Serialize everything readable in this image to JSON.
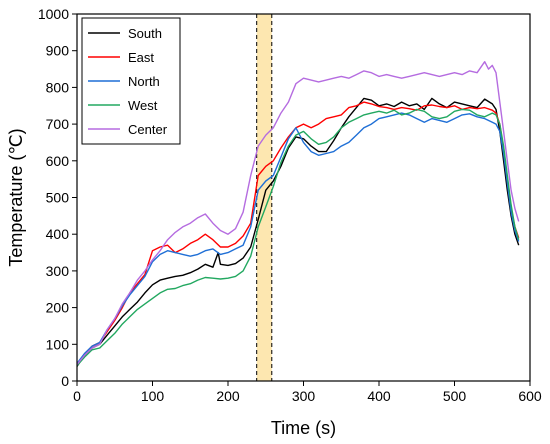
{
  "chart_data": {
    "type": "line",
    "title": "",
    "xlabel": "Time (s)",
    "ylabel": "Temperature (℃)",
    "xlim": [
      0,
      600
    ],
    "ylim": [
      0,
      1000
    ],
    "xticks": [
      "0",
      "100",
      "200",
      "300",
      "400",
      "500",
      "600"
    ],
    "yticks": [
      "0",
      "100",
      "200",
      "300",
      "400",
      "500",
      "600",
      "700",
      "800",
      "900",
      "1000"
    ],
    "grid": false,
    "legend_position": "top-left",
    "highlight_band": {
      "x_start": 238,
      "x_end": 258,
      "color": "#fde7b0"
    },
    "series": [
      {
        "name": "South",
        "color": "#000000",
        "points": [
          [
            0,
            40
          ],
          [
            10,
            70
          ],
          [
            20,
            90
          ],
          [
            30,
            100
          ],
          [
            40,
            125
          ],
          [
            50,
            150
          ],
          [
            60,
            175
          ],
          [
            70,
            195
          ],
          [
            80,
            215
          ],
          [
            90,
            240
          ],
          [
            100,
            262
          ],
          [
            110,
            275
          ],
          [
            120,
            280
          ],
          [
            130,
            285
          ],
          [
            140,
            288
          ],
          [
            150,
            295
          ],
          [
            160,
            305
          ],
          [
            170,
            318
          ],
          [
            180,
            310
          ],
          [
            187,
            350
          ],
          [
            190,
            318
          ],
          [
            200,
            315
          ],
          [
            210,
            320
          ],
          [
            220,
            335
          ],
          [
            230,
            365
          ],
          [
            240,
            440
          ],
          [
            250,
            520
          ],
          [
            260,
            545
          ],
          [
            270,
            585
          ],
          [
            280,
            635
          ],
          [
            290,
            665
          ],
          [
            300,
            660
          ],
          [
            310,
            640
          ],
          [
            320,
            625
          ],
          [
            330,
            625
          ],
          [
            340,
            655
          ],
          [
            350,
            690
          ],
          [
            360,
            720
          ],
          [
            370,
            745
          ],
          [
            380,
            770
          ],
          [
            390,
            765
          ],
          [
            400,
            750
          ],
          [
            410,
            755
          ],
          [
            420,
            748
          ],
          [
            430,
            760
          ],
          [
            440,
            750
          ],
          [
            450,
            755
          ],
          [
            460,
            740
          ],
          [
            470,
            770
          ],
          [
            480,
            755
          ],
          [
            490,
            745
          ],
          [
            500,
            760
          ],
          [
            510,
            755
          ],
          [
            520,
            750
          ],
          [
            530,
            745
          ],
          [
            540,
            768
          ],
          [
            550,
            755
          ],
          [
            555,
            740
          ],
          [
            560,
            680
          ],
          [
            565,
            600
          ],
          [
            570,
            520
          ],
          [
            575,
            450
          ],
          [
            580,
            400
          ],
          [
            585,
            370
          ]
        ]
      },
      {
        "name": "East",
        "color": "#ff0000",
        "points": [
          [
            0,
            45
          ],
          [
            10,
            72
          ],
          [
            20,
            95
          ],
          [
            30,
            105
          ],
          [
            40,
            135
          ],
          [
            50,
            165
          ],
          [
            60,
            200
          ],
          [
            70,
            240
          ],
          [
            80,
            265
          ],
          [
            90,
            290
          ],
          [
            100,
            355
          ],
          [
            110,
            365
          ],
          [
            120,
            370
          ],
          [
            130,
            350
          ],
          [
            140,
            360
          ],
          [
            150,
            375
          ],
          [
            160,
            385
          ],
          [
            170,
            400
          ],
          [
            180,
            385
          ],
          [
            190,
            365
          ],
          [
            200,
            365
          ],
          [
            210,
            375
          ],
          [
            220,
            395
          ],
          [
            230,
            430
          ],
          [
            240,
            560
          ],
          [
            250,
            585
          ],
          [
            260,
            600
          ],
          [
            270,
            635
          ],
          [
            280,
            665
          ],
          [
            290,
            690
          ],
          [
            300,
            700
          ],
          [
            310,
            690
          ],
          [
            320,
            700
          ],
          [
            330,
            715
          ],
          [
            340,
            720
          ],
          [
            350,
            725
          ],
          [
            360,
            745
          ],
          [
            370,
            750
          ],
          [
            380,
            760
          ],
          [
            390,
            755
          ],
          [
            400,
            748
          ],
          [
            410,
            745
          ],
          [
            420,
            740
          ],
          [
            430,
            745
          ],
          [
            440,
            742
          ],
          [
            450,
            738
          ],
          [
            460,
            750
          ],
          [
            470,
            752
          ],
          [
            480,
            748
          ],
          [
            490,
            745
          ],
          [
            500,
            750
          ],
          [
            510,
            740
          ],
          [
            520,
            745
          ],
          [
            530,
            742
          ],
          [
            540,
            745
          ],
          [
            550,
            738
          ],
          [
            555,
            730
          ],
          [
            560,
            700
          ],
          [
            565,
            630
          ],
          [
            570,
            550
          ],
          [
            575,
            470
          ],
          [
            580,
            420
          ],
          [
            585,
            390
          ]
        ]
      },
      {
        "name": "North",
        "color": "#1f6fd6",
        "points": [
          [
            0,
            48
          ],
          [
            10,
            75
          ],
          [
            20,
            95
          ],
          [
            30,
            105
          ],
          [
            40,
            140
          ],
          [
            50,
            170
          ],
          [
            60,
            205
          ],
          [
            70,
            235
          ],
          [
            80,
            260
          ],
          [
            90,
            285
          ],
          [
            100,
            325
          ],
          [
            110,
            345
          ],
          [
            120,
            355
          ],
          [
            130,
            350
          ],
          [
            140,
            345
          ],
          [
            150,
            340
          ],
          [
            160,
            345
          ],
          [
            170,
            355
          ],
          [
            180,
            360
          ],
          [
            190,
            345
          ],
          [
            200,
            350
          ],
          [
            210,
            360
          ],
          [
            220,
            370
          ],
          [
            230,
            420
          ],
          [
            240,
            520
          ],
          [
            250,
            545
          ],
          [
            260,
            560
          ],
          [
            270,
            610
          ],
          [
            280,
            660
          ],
          [
            290,
            690
          ],
          [
            300,
            650
          ],
          [
            310,
            625
          ],
          [
            320,
            615
          ],
          [
            330,
            620
          ],
          [
            340,
            625
          ],
          [
            350,
            640
          ],
          [
            360,
            650
          ],
          [
            370,
            670
          ],
          [
            380,
            690
          ],
          [
            390,
            700
          ],
          [
            400,
            715
          ],
          [
            410,
            720
          ],
          [
            420,
            725
          ],
          [
            430,
            730
          ],
          [
            440,
            725
          ],
          [
            450,
            715
          ],
          [
            460,
            705
          ],
          [
            470,
            715
          ],
          [
            480,
            710
          ],
          [
            490,
            705
          ],
          [
            500,
            715
          ],
          [
            510,
            725
          ],
          [
            520,
            728
          ],
          [
            530,
            720
          ],
          [
            540,
            715
          ],
          [
            550,
            705
          ],
          [
            555,
            700
          ],
          [
            560,
            680
          ],
          [
            565,
            620
          ],
          [
            570,
            540
          ],
          [
            575,
            460
          ],
          [
            580,
            410
          ],
          [
            585,
            380
          ]
        ]
      },
      {
        "name": "West",
        "color": "#22a860",
        "points": [
          [
            0,
            42
          ],
          [
            10,
            65
          ],
          [
            20,
            85
          ],
          [
            30,
            90
          ],
          [
            40,
            110
          ],
          [
            50,
            130
          ],
          [
            60,
            155
          ],
          [
            70,
            175
          ],
          [
            80,
            195
          ],
          [
            90,
            210
          ],
          [
            100,
            225
          ],
          [
            110,
            240
          ],
          [
            120,
            250
          ],
          [
            130,
            252
          ],
          [
            140,
            260
          ],
          [
            150,
            265
          ],
          [
            160,
            275
          ],
          [
            170,
            282
          ],
          [
            180,
            280
          ],
          [
            190,
            278
          ],
          [
            200,
            280
          ],
          [
            210,
            285
          ],
          [
            220,
            300
          ],
          [
            230,
            340
          ],
          [
            240,
            420
          ],
          [
            250,
            475
          ],
          [
            260,
            530
          ],
          [
            270,
            595
          ],
          [
            280,
            640
          ],
          [
            290,
            670
          ],
          [
            300,
            680
          ],
          [
            310,
            660
          ],
          [
            320,
            645
          ],
          [
            330,
            650
          ],
          [
            340,
            665
          ],
          [
            350,
            690
          ],
          [
            360,
            705
          ],
          [
            370,
            715
          ],
          [
            380,
            725
          ],
          [
            390,
            730
          ],
          [
            400,
            735
          ],
          [
            410,
            730
          ],
          [
            420,
            738
          ],
          [
            430,
            725
          ],
          [
            440,
            730
          ],
          [
            450,
            740
          ],
          [
            460,
            735
          ],
          [
            470,
            720
          ],
          [
            480,
            715
          ],
          [
            490,
            720
          ],
          [
            500,
            735
          ],
          [
            510,
            740
          ],
          [
            520,
            738
          ],
          [
            530,
            725
          ],
          [
            540,
            720
          ],
          [
            550,
            730
          ],
          [
            555,
            725
          ],
          [
            560,
            700
          ],
          [
            565,
            640
          ],
          [
            570,
            560
          ],
          [
            575,
            480
          ],
          [
            580,
            420
          ],
          [
            585,
            385
          ]
        ]
      },
      {
        "name": "Center",
        "color": "#b56ce0",
        "points": [
          [
            0,
            45
          ],
          [
            10,
            70
          ],
          [
            20,
            90
          ],
          [
            30,
            100
          ],
          [
            40,
            140
          ],
          [
            50,
            170
          ],
          [
            60,
            210
          ],
          [
            70,
            240
          ],
          [
            80,
            275
          ],
          [
            90,
            300
          ],
          [
            100,
            330
          ],
          [
            110,
            355
          ],
          [
            120,
            385
          ],
          [
            130,
            405
          ],
          [
            140,
            420
          ],
          [
            150,
            430
          ],
          [
            160,
            445
          ],
          [
            170,
            455
          ],
          [
            180,
            430
          ],
          [
            190,
            410
          ],
          [
            200,
            400
          ],
          [
            210,
            415
          ],
          [
            220,
            460
          ],
          [
            230,
            560
          ],
          [
            240,
            640
          ],
          [
            250,
            670
          ],
          [
            260,
            690
          ],
          [
            270,
            730
          ],
          [
            280,
            760
          ],
          [
            290,
            810
          ],
          [
            300,
            825
          ],
          [
            310,
            820
          ],
          [
            320,
            815
          ],
          [
            330,
            820
          ],
          [
            340,
            825
          ],
          [
            350,
            830
          ],
          [
            360,
            825
          ],
          [
            370,
            835
          ],
          [
            380,
            845
          ],
          [
            390,
            840
          ],
          [
            400,
            830
          ],
          [
            410,
            835
          ],
          [
            420,
            830
          ],
          [
            430,
            825
          ],
          [
            440,
            830
          ],
          [
            450,
            835
          ],
          [
            460,
            840
          ],
          [
            470,
            835
          ],
          [
            480,
            830
          ],
          [
            490,
            835
          ],
          [
            500,
            840
          ],
          [
            510,
            835
          ],
          [
            520,
            845
          ],
          [
            530,
            840
          ],
          [
            535,
            855
          ],
          [
            540,
            870
          ],
          [
            545,
            850
          ],
          [
            550,
            860
          ],
          [
            555,
            840
          ],
          [
            560,
            760
          ],
          [
            565,
            680
          ],
          [
            570,
            600
          ],
          [
            575,
            520
          ],
          [
            580,
            470
          ],
          [
            585,
            435
          ]
        ]
      }
    ]
  }
}
